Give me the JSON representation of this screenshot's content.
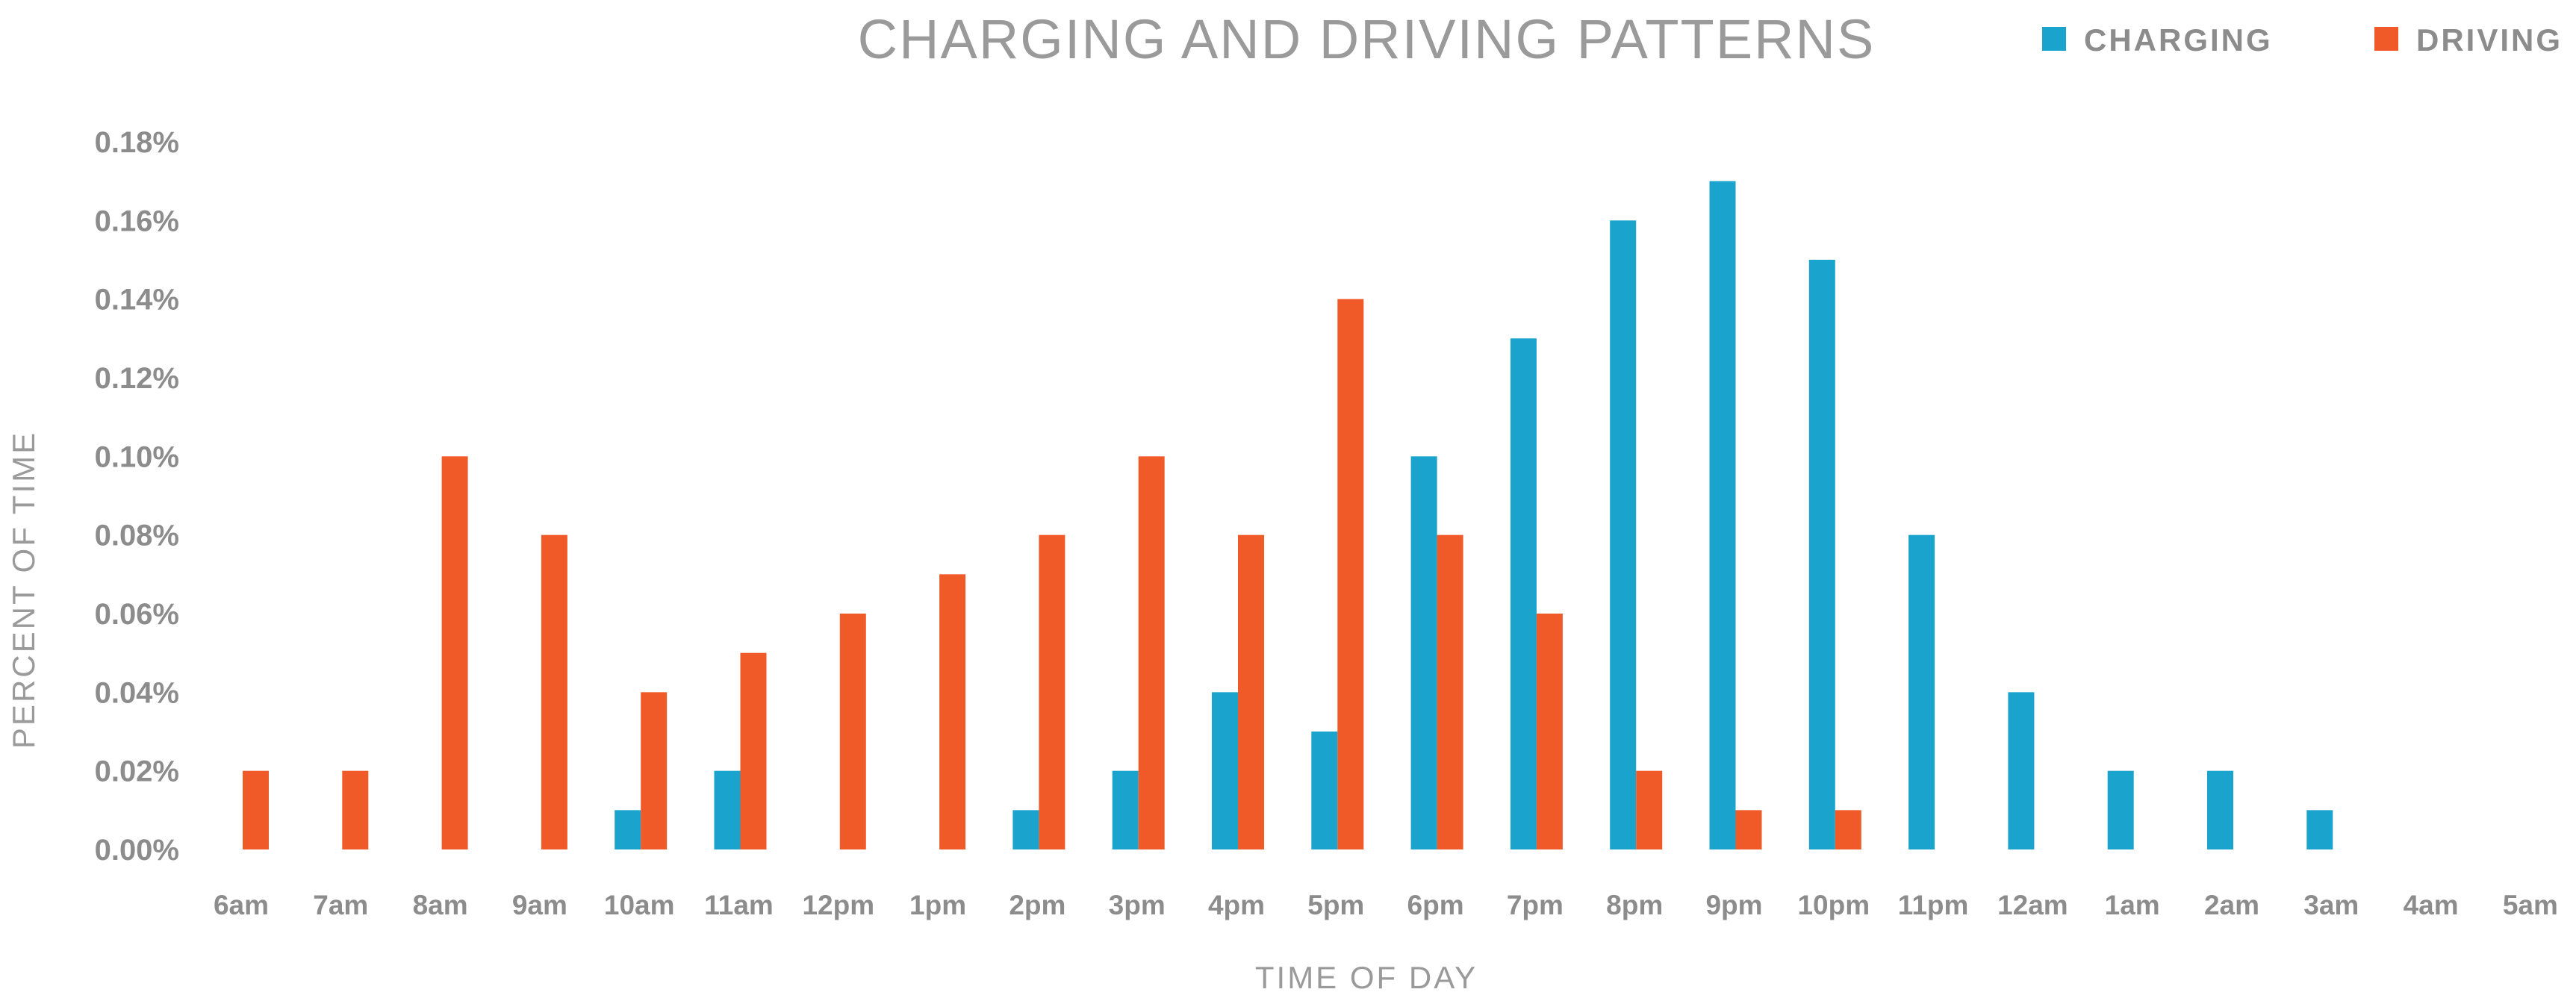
{
  "chart_data": {
    "type": "bar",
    "title": "CHARGING AND DRIVING PATTERNS",
    "xlabel": "TIME OF DAY",
    "ylabel": "PERCENT OF TIME",
    "ylim": [
      0,
      0.18
    ],
    "yticks": [
      "0.00%",
      "0.02%",
      "0.04%",
      "0.06%",
      "0.08%",
      "0.10%",
      "0.12%",
      "0.14%",
      "0.16%",
      "0.18%"
    ],
    "grid": false,
    "legend_position": "top-right",
    "categories": [
      "6am",
      "7am",
      "8am",
      "9am",
      "10am",
      "11am",
      "12pm",
      "1pm",
      "2pm",
      "3pm",
      "4pm",
      "5pm",
      "6pm",
      "7pm",
      "8pm",
      "9pm",
      "10pm",
      "11pm",
      "12am",
      "1am",
      "2am",
      "3am",
      "4am",
      "5am"
    ],
    "series": [
      {
        "name": "CHARGING",
        "color": "#1aa3cc",
        "values": [
          0,
          0,
          0,
          0,
          0.01,
          0.02,
          0,
          0,
          0.01,
          0.02,
          0.04,
          0.03,
          0.1,
          0.13,
          0.16,
          0.17,
          0.15,
          0.08,
          0.04,
          0.02,
          0.02,
          0.01,
          0,
          0
        ]
      },
      {
        "name": "DRIVING",
        "color": "#f05a28",
        "values": [
          0.02,
          0.02,
          0.1,
          0.08,
          0.04,
          0.05,
          0.06,
          0.07,
          0.08,
          0.1,
          0.08,
          0.14,
          0.08,
          0.06,
          0.02,
          0.01,
          0.01,
          0,
          0,
          0,
          0,
          0,
          0,
          0
        ]
      }
    ]
  }
}
